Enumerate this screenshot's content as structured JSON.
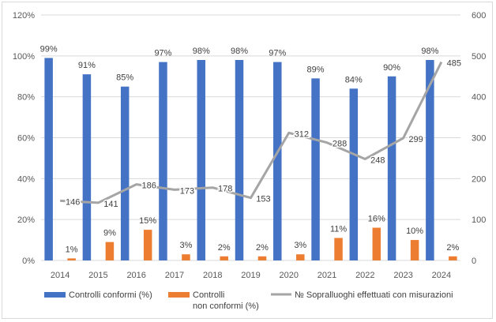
{
  "chart_data": {
    "type": "bar",
    "categories": [
      "2014",
      "2015",
      "2016",
      "2017",
      "2018",
      "2019",
      "2020",
      "2021",
      "2022",
      "2023",
      "2024"
    ],
    "ylim": [
      0,
      120
    ],
    "y_ticks": [
      "0%",
      "20%",
      "40%",
      "60%",
      "80%",
      "100%",
      "120%"
    ],
    "y2lim": [
      0,
      600
    ],
    "y2_ticks": [
      "0",
      "100",
      "200",
      "300",
      "400",
      "500",
      "600"
    ],
    "grid": true,
    "legend_position": "bottom",
    "series": [
      {
        "name": "Controlli conformi (%)",
        "type": "bar",
        "axis": "left",
        "color": "#4472C4",
        "values": [
          99,
          91,
          85,
          97,
          98,
          98,
          97,
          89,
          84,
          90,
          98
        ],
        "labels": [
          "99%",
          "91%",
          "85%",
          "97%",
          "98%",
          "98%",
          "97%",
          "89%",
          "84%",
          "90%",
          "98%"
        ]
      },
      {
        "name": "Controlli non conformi (%)",
        "legend_lines": [
          "Controlli",
          "non conformi (%)"
        ],
        "type": "bar",
        "axis": "left",
        "color": "#ED7D31",
        "values": [
          1,
          9,
          15,
          3,
          2,
          2,
          3,
          11,
          16,
          10,
          2
        ],
        "labels": [
          "1%",
          "9%",
          "15%",
          "3%",
          "2%",
          "2%",
          "3%",
          "11%",
          "16%",
          "10%",
          "2%"
        ]
      },
      {
        "name": "№ Sopralluoghi effettuati con misurazioni",
        "type": "line",
        "axis": "right",
        "color": "#A5A5A5",
        "values": [
          146,
          141,
          186,
          173,
          178,
          153,
          312,
          288,
          248,
          299,
          485
        ],
        "labels": [
          "146",
          "141",
          "186",
          "173",
          "178",
          "153",
          "312",
          "288",
          "248",
          "299",
          "485"
        ]
      }
    ]
  }
}
